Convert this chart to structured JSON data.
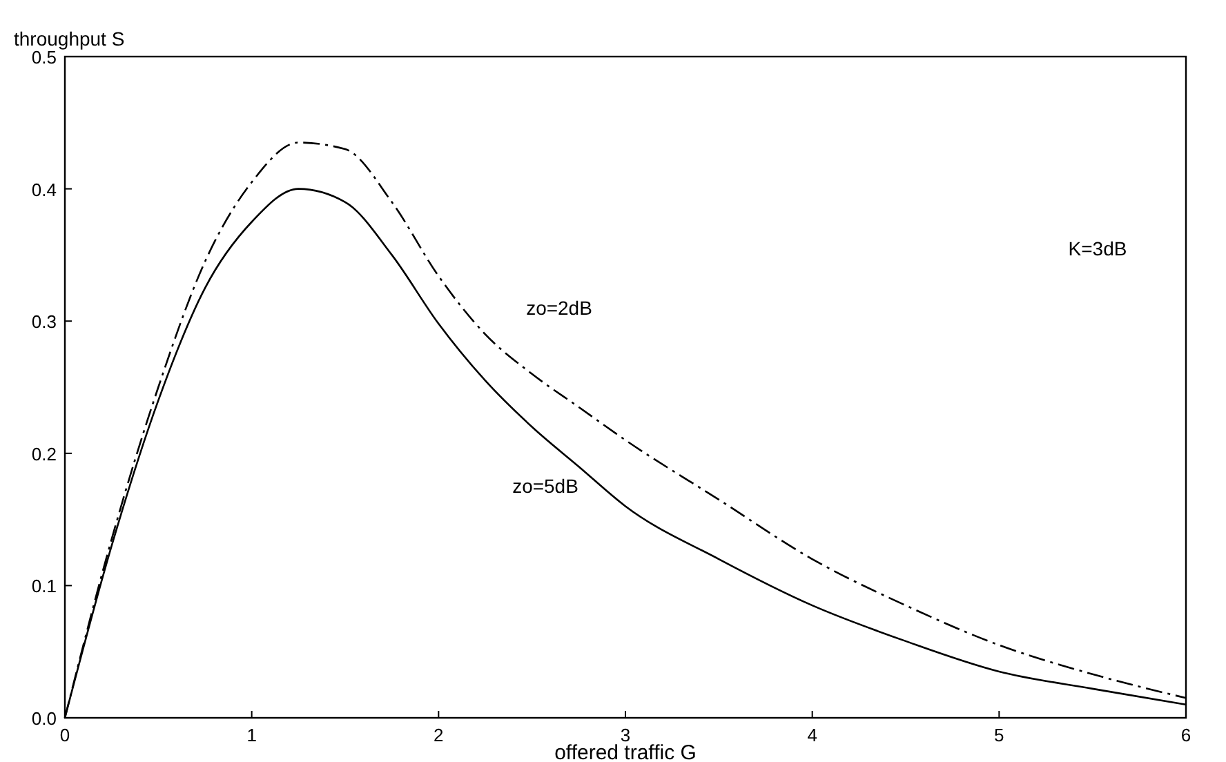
{
  "chart_data": {
    "type": "line",
    "xlabel": "offered traffic G",
    "ylabel": "throughput S",
    "x": [
      0,
      0.25,
      0.5,
      0.75,
      1,
      1.25,
      1.5,
      1.75,
      2,
      2.25,
      2.5,
      2.75,
      3,
      3.5,
      4,
      4.5,
      5,
      5.5,
      6
    ],
    "series": [
      {
        "color": "#000000",
        "line_style": "dashed",
        "values": [
          0,
          0.135,
          0.25,
          0.345,
          0.405,
          0.435,
          0.43,
          0.39,
          0.334,
          0.29,
          0.26,
          0.235,
          0.21,
          0.165,
          0.12,
          0.085,
          0.055,
          0.033,
          0.015
        ]
      },
      {
        "color": "#000000",
        "line_style": "solid",
        "values": [
          0,
          0.13,
          0.24,
          0.325,
          0.375,
          0.4,
          0.39,
          0.35,
          0.298,
          0.255,
          0.22,
          0.19,
          0.16,
          0.12,
          0.085,
          0.058,
          0.035,
          0.022,
          0.01
        ]
      }
    ],
    "xlim": [
      0,
      6
    ],
    "xticks": [
      0,
      1,
      2,
      3,
      4,
      5,
      6
    ],
    "ylim": [
      0,
      0.5
    ],
    "yticks": [
      {
        "value": 0,
        "label": "0.0"
      },
      {
        "value": 0.1,
        "label": "0.1"
      },
      {
        "value": 0.2,
        "label": "0.2"
      },
      {
        "value": 0.3,
        "label": "0.3"
      },
      {
        "value": 0.4,
        "label": "0.4"
      },
      {
        "value": 0.5,
        "label": "0.5"
      }
    ],
    "grid": false,
    "marker": "none",
    "annotations": [
      "zo=2dB",
      "zo=5dB",
      "K=3dB"
    ]
  }
}
